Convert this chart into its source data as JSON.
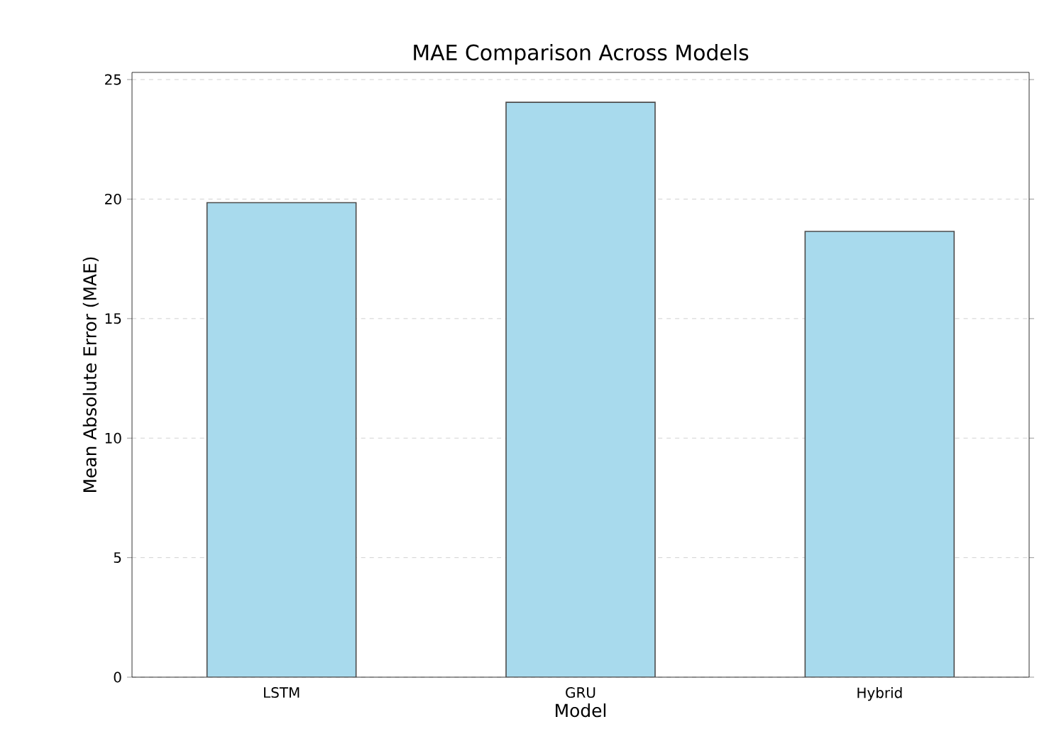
{
  "chart_data": {
    "type": "bar",
    "title": "MAE Comparison Across Models",
    "xlabel": "Model",
    "ylabel": "Mean Absolute Error (MAE)",
    "categories": [
      "LSTM",
      "GRU",
      "Hybrid"
    ],
    "values": [
      19.85,
      24.05,
      18.65
    ],
    "color": "#a8daed",
    "ylim": [
      0,
      25.3
    ],
    "yticks": [
      0,
      5,
      10,
      15,
      20,
      25
    ],
    "grid": "y"
  }
}
